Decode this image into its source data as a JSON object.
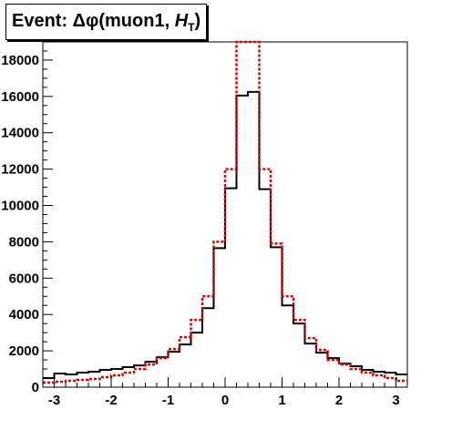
{
  "chart_data": {
    "type": "line",
    "title": "Event: Δφ(muon1, H_T)",
    "title_main": "Event: Δφ(muon1, ",
    "title_symbol": "H",
    "title_sub": "T",
    "title_close": ")",
    "xlabel": "",
    "ylabel": "",
    "xlim": [
      -3.2,
      3.2
    ],
    "ylim": [
      0,
      19000
    ],
    "x_ticks": [
      -3,
      -2,
      -1,
      0,
      1,
      2,
      3
    ],
    "x_tick_labels": [
      "-3",
      "-2",
      "-1",
      "0",
      "1",
      "2",
      "3"
    ],
    "y_ticks": [
      0,
      2000,
      4000,
      6000,
      8000,
      10000,
      12000,
      14000,
      16000,
      18000
    ],
    "y_tick_labels": [
      "0",
      "2000",
      "4000",
      "6000",
      "8000",
      "10000",
      "12000",
      "14000",
      "16000",
      "18000"
    ],
    "grid": false,
    "legend": "none",
    "bin_edges": [
      -3.2,
      -3.0,
      -2.8,
      -2.6,
      -2.4,
      -2.2,
      -2.0,
      -1.8,
      -1.6,
      -1.4,
      -1.2,
      -1.0,
      -0.8,
      -0.6,
      -0.4,
      -0.2,
      0.0,
      0.2,
      0.4,
      0.6,
      0.8,
      1.0,
      1.2,
      1.4,
      1.6,
      1.8,
      2.0,
      2.2,
      2.4,
      2.6,
      2.8,
      3.0,
      3.2
    ],
    "series": [
      {
        "style": "solid",
        "color": "#000000",
        "x": [
          -3.1,
          -2.9,
          -2.7,
          -2.5,
          -2.3,
          -2.1,
          -1.9,
          -1.7,
          -1.5,
          -1.3,
          -1.1,
          -0.9,
          -0.7,
          -0.5,
          -0.3,
          -0.1,
          0.1,
          0.3,
          0.5,
          0.7,
          0.9,
          1.1,
          1.3,
          1.5,
          1.7,
          1.9,
          2.1,
          2.3,
          2.5,
          2.7,
          2.9,
          3.1
        ],
        "values": [
          500,
          750,
          700,
          800,
          850,
          950,
          1000,
          1100,
          1200,
          1400,
          1650,
          1950,
          2350,
          3000,
          4350,
          7650,
          10950,
          16050,
          16250,
          10900,
          7700,
          4500,
          3500,
          2400,
          1900,
          1600,
          1300,
          1150,
          950,
          850,
          800,
          700
        ]
      },
      {
        "style": "dashed",
        "color": "#e00000",
        "x": [
          -3.1,
          -2.9,
          -2.7,
          -2.5,
          -2.3,
          -2.1,
          -1.9,
          -1.7,
          -1.5,
          -1.3,
          -1.1,
          -0.9,
          -0.7,
          -0.5,
          -0.3,
          -0.1,
          0.1,
          0.3,
          0.5,
          0.7,
          0.9,
          1.1,
          1.3,
          1.5,
          1.7,
          1.9,
          2.1,
          2.3,
          2.5,
          2.7,
          2.9,
          3.1
        ],
        "values": [
          250,
          300,
          350,
          400,
          450,
          550,
          650,
          800,
          1000,
          1250,
          1600,
          2100,
          2750,
          3700,
          5000,
          8000,
          12000,
          19000,
          19000,
          12000,
          7900,
          5000,
          3700,
          2700,
          2050,
          1500,
          1250,
          1000,
          800,
          650,
          500,
          350
        ]
      }
    ]
  }
}
